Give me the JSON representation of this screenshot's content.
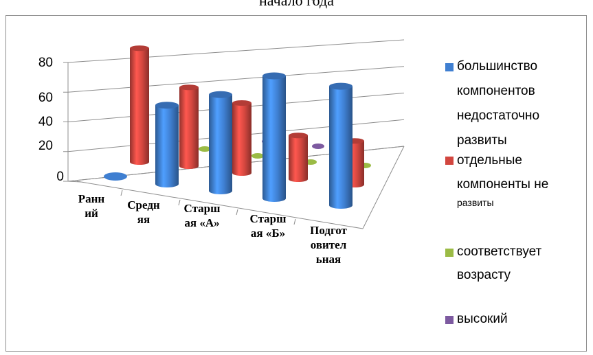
{
  "title": "начало года",
  "legend": {
    "items": [
      {
        "lines": [
          "большинство",
          "компонентов",
          "недостаточно",
          "развиты"
        ],
        "color": "#3f7fd1"
      },
      {
        "lines": [
          "отдельные",
          "компоненты не"
        ],
        "small": "развиты",
        "color": "#d2463f"
      },
      {
        "lines": [
          "соответствует",
          "возрасту"
        ],
        "color": "#9bbb45"
      },
      {
        "lines": [
          "высокий"
        ],
        "color": "#7d5aa0"
      }
    ]
  },
  "categories": [
    [
      "Ранн",
      "ий"
    ],
    [
      "Средн",
      "яя"
    ],
    [
      "Старш",
      "ая «А»"
    ],
    [
      "Старш",
      "ая «Б»"
    ],
    [
      "Подгот",
      "овител",
      "ьная"
    ]
  ],
  "chart_data": {
    "type": "bar",
    "title": "начало года",
    "categories": [
      "Ранний",
      "Средняя",
      "Старшая «А»",
      "Старшая «Б»",
      "Подготовительная"
    ],
    "series": [
      {
        "name": "большинство компонентов недостаточно развиты",
        "values": [
          0,
          45,
          55,
          70,
          68
        ],
        "color": "#3f7fd1"
      },
      {
        "name": "отдельные компоненты не развиты",
        "values": [
          65,
          45,
          40,
          25,
          25
        ],
        "color": "#d2463f"
      },
      {
        "name": "соответствует возрасту",
        "values": [
          0,
          0,
          0,
          0,
          0
        ],
        "color": "#9bbb45"
      },
      {
        "name": "высокий",
        "values": [
          0,
          0,
          0,
          0,
          0
        ],
        "color": "#7d5aa0"
      }
    ],
    "yticks": [
      "0",
      "20",
      "40",
      "60",
      "80"
    ],
    "ylim": [
      0,
      80
    ],
    "gridlines": true,
    "legend_position": "right",
    "style": "3d-cylinders"
  }
}
